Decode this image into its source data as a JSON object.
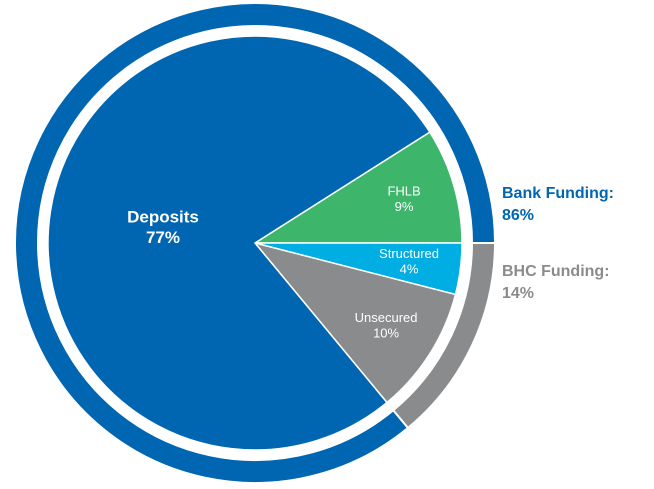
{
  "chart_data": {
    "type": "pie",
    "categories": [
      "FHLB",
      "Structured",
      "Unsecured",
      "Deposits"
    ],
    "values": [
      9,
      4,
      10,
      77
    ],
    "value_labels": [
      "9%",
      "4%",
      "10%",
      "77%"
    ],
    "colors": [
      "#3db56b",
      "#00aee3",
      "#8a8b8d",
      "#0066b2"
    ],
    "ring": {
      "categories": [
        "Bank Funding:",
        "BHC Funding:"
      ],
      "values": [
        86,
        14
      ],
      "value_labels": [
        "86%",
        "14%"
      ],
      "colors": [
        "#0066b2",
        "#8a8b8d"
      ]
    }
  }
}
